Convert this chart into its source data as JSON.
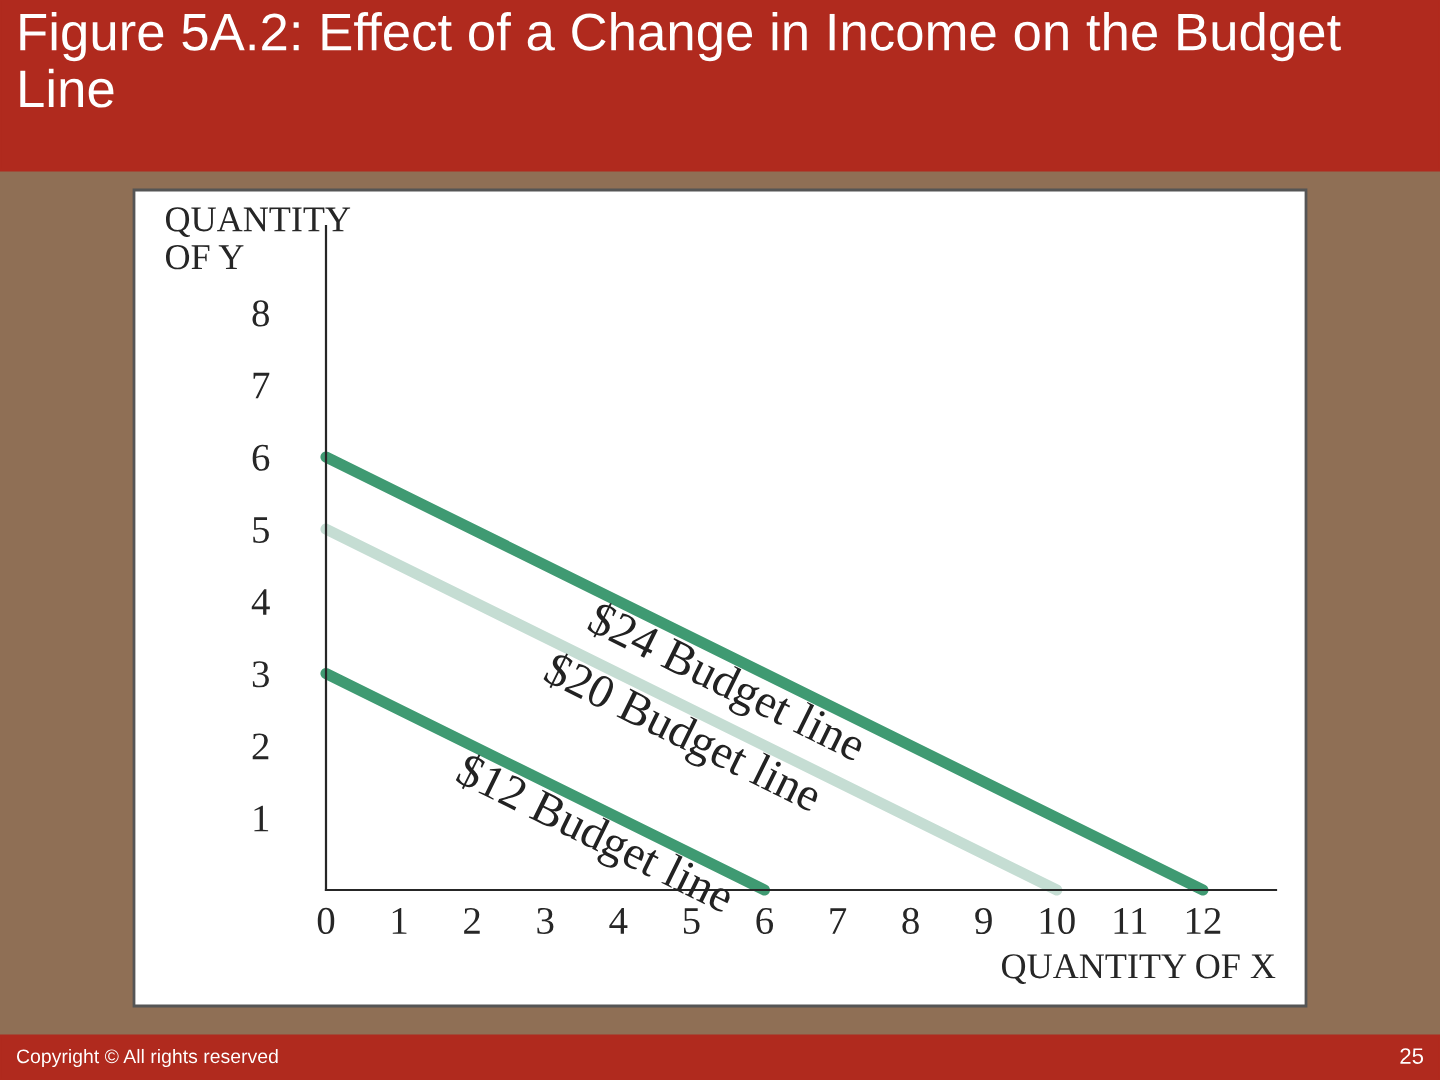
{
  "chart_data": {
    "type": "line",
    "title": "Figure 5A.2: Effect of a Change in Income on the Budget Line",
    "xlabel": "QUANTITY OF X",
    "ylabel": "QUANTITY\nOF Y",
    "series": [
      {
        "name": "$24 Budget line",
        "color": "#3f9a72",
        "x": [
          0,
          12
        ],
        "values": [
          6,
          0
        ]
      },
      {
        "name": "$20 Budget line",
        "color": "#c5ddd3",
        "x": [
          0,
          10
        ],
        "values": [
          5,
          0
        ]
      },
      {
        "name": "$12 Budget line",
        "color": "#3f9a72",
        "x": [
          0,
          6
        ],
        "values": [
          3,
          0
        ]
      }
    ],
    "xlim": [
      0,
      13
    ],
    "ylim": [
      0,
      9.2
    ],
    "xticks": [
      0,
      1,
      2,
      3,
      4,
      5,
      6,
      7,
      8,
      9,
      10,
      11,
      12
    ],
    "yticks": [
      1,
      2,
      3,
      4,
      5,
      6,
      7,
      8
    ],
    "grid": false,
    "legend": false,
    "marker": "none",
    "line_style": "solid",
    "annotations": [
      "Copyright © All rights reserved",
      "25"
    ]
  }
}
